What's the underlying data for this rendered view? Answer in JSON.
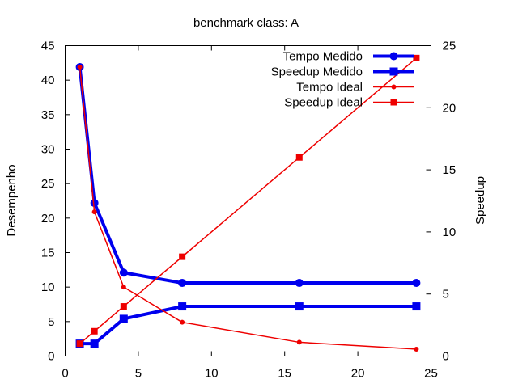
{
  "chart_data": {
    "type": "line",
    "title": "benchmark class: A",
    "xlabel": "",
    "ylabel": "Desempenho",
    "y2label": "Speedup",
    "xlim": [
      0,
      25
    ],
    "ylim": [
      0,
      45
    ],
    "y2lim": [
      0,
      25
    ],
    "xticks": [
      0,
      5,
      10,
      15,
      20,
      25
    ],
    "yticks": [
      0,
      5,
      10,
      15,
      20,
      25,
      30,
      35,
      40,
      45
    ],
    "y2ticks": [
      0,
      5,
      10,
      15,
      20,
      25
    ],
    "grid": false,
    "legend_position": "top-right",
    "series": [
      {
        "name": "Tempo Medido",
        "axis": "y",
        "color": "#0000ee",
        "marker": "circle",
        "thick": true,
        "x": [
          1,
          2,
          4,
          8,
          16,
          24
        ],
        "y": [
          41.9,
          22.2,
          12.1,
          10.6,
          10.6,
          10.6
        ]
      },
      {
        "name": "Speedup Medido",
        "axis": "y2",
        "color": "#0000ee",
        "marker": "square",
        "thick": true,
        "x": [
          1,
          2,
          4,
          8,
          16,
          24
        ],
        "y": [
          1.0,
          1.0,
          3.0,
          4.0,
          4.0,
          4.0
        ]
      },
      {
        "name": "Tempo Ideal",
        "axis": "y",
        "color": "#ee0000",
        "marker": "circle",
        "thick": false,
        "x": [
          1,
          2,
          4,
          8,
          16,
          24
        ],
        "y": [
          41.9,
          20.9,
          10.0,
          4.9,
          2.0,
          1.0
        ]
      },
      {
        "name": "Speedup Ideal",
        "axis": "y2",
        "color": "#ee0000",
        "marker": "square",
        "thick": false,
        "x": [
          1,
          2,
          4,
          8,
          16,
          24
        ],
        "y": [
          1.0,
          2.0,
          4.0,
          8.0,
          16.0,
          24.0
        ]
      }
    ]
  }
}
